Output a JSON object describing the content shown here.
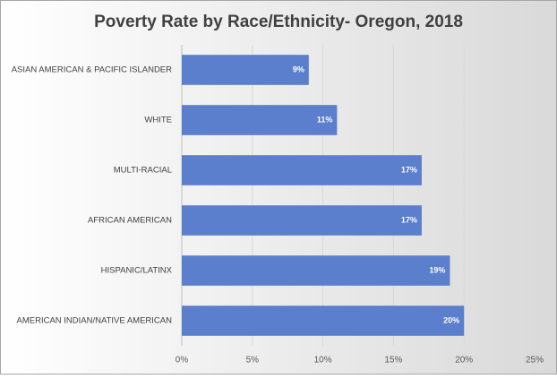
{
  "chart_data": {
    "type": "hbar",
    "title": "Poverty Rate by Race/Ethnicity- Oregon, 2018",
    "categories": [
      "ASIAN AMERICAN & PACIFIC ISLANDER",
      "WHITE",
      "MULTI-RACIAL",
      "AFRICAN AMERICAN",
      "HISPANIC/LATINX",
      "AMERICAN INDIAN/NATIVE AMERICAN"
    ],
    "values": [
      9,
      11,
      17,
      17,
      19,
      20
    ],
    "value_labels": [
      "9%",
      "11%",
      "17%",
      "17%",
      "19%",
      "20%"
    ],
    "color": "#5b7fcc",
    "xlim": [
      0,
      25
    ],
    "xticks": [
      {
        "value": 0,
        "label": "0%"
      },
      {
        "value": 5,
        "label": "5%"
      },
      {
        "value": 10,
        "label": "10%"
      },
      {
        "value": 15,
        "label": "15%"
      },
      {
        "value": 20,
        "label": "20%"
      },
      {
        "value": 25,
        "label": "25%"
      }
    ],
    "grid": true
  }
}
